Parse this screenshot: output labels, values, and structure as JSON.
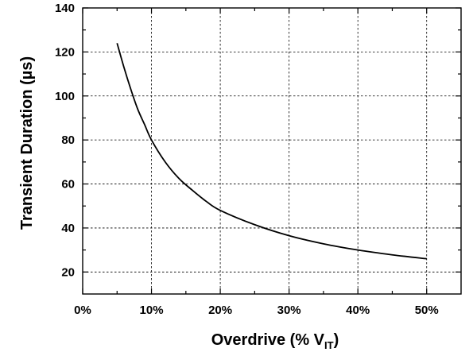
{
  "chart_data": {
    "type": "line",
    "xlabel": {
      "main": "Overdrive (% V",
      "sub": "IT",
      "close": ")"
    },
    "ylabel": "Transient Duration (µs)",
    "xlim": [
      0,
      55
    ],
    "ylim": [
      10,
      140
    ],
    "x_ticks": [
      {
        "value": 0,
        "label": "0%"
      },
      {
        "value": 10,
        "label": "10%"
      },
      {
        "value": 20,
        "label": "20%"
      },
      {
        "value": 30,
        "label": "30%"
      },
      {
        "value": 40,
        "label": "40%"
      },
      {
        "value": 50,
        "label": "50%"
      }
    ],
    "y_ticks": [
      {
        "value": 20,
        "label": "20"
      },
      {
        "value": 40,
        "label": "40"
      },
      {
        "value": 60,
        "label": "60"
      },
      {
        "value": 80,
        "label": "80"
      },
      {
        "value": 100,
        "label": "100"
      },
      {
        "value": 120,
        "label": "120"
      },
      {
        "value": 140,
        "label": "140"
      }
    ],
    "grid": true,
    "series": [
      {
        "color": "#000000",
        "points": [
          {
            "x": 5,
            "y": 124
          },
          {
            "x": 6,
            "y": 113
          },
          {
            "x": 7,
            "y": 103
          },
          {
            "x": 8,
            "y": 94
          },
          {
            "x": 9,
            "y": 87
          },
          {
            "x": 10,
            "y": 80
          },
          {
            "x": 12,
            "y": 70
          },
          {
            "x": 14,
            "y": 62.5
          },
          {
            "x": 16,
            "y": 57
          },
          {
            "x": 18,
            "y": 52
          },
          {
            "x": 20,
            "y": 48
          },
          {
            "x": 25,
            "y": 41.5
          },
          {
            "x": 30,
            "y": 36.5
          },
          {
            "x": 35,
            "y": 32.8
          },
          {
            "x": 40,
            "y": 30
          },
          {
            "x": 45,
            "y": 27.8
          },
          {
            "x": 50,
            "y": 26
          }
        ]
      }
    ]
  }
}
